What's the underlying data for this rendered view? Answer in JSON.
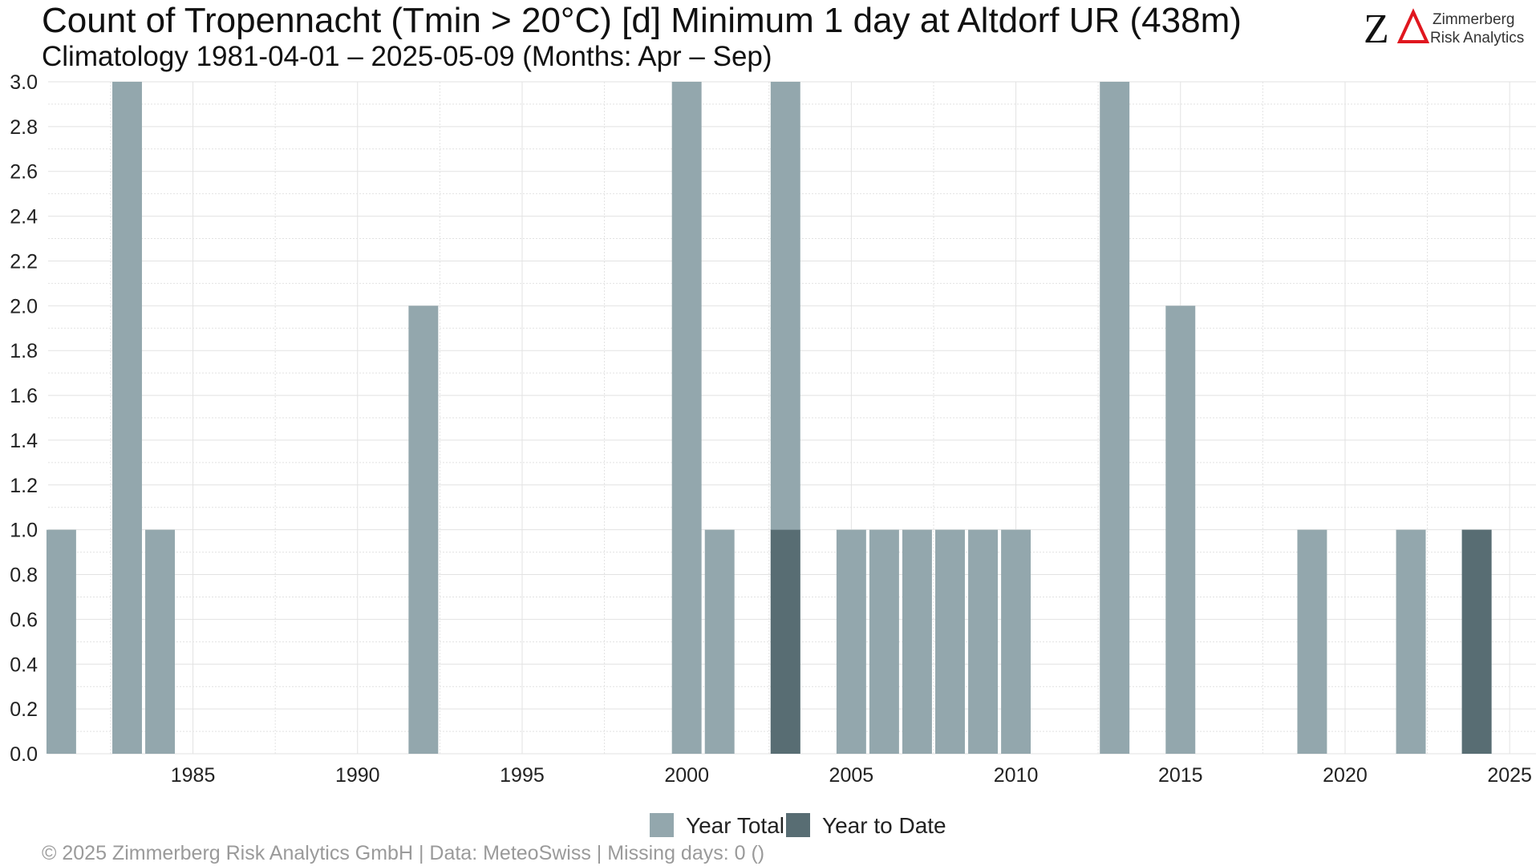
{
  "header": {
    "title": "Count of Tropennacht (Tmin > 20°C) [d] Minimum 1 day at Altdorf  UR (438m)",
    "subtitle": "Climatology 1981-04-01 – 2025-05-09 (Months: Apr – Sep)"
  },
  "logo": {
    "line1": "Zimmerberg",
    "line2": "Risk Analytics",
    "accent_color": "#e0171f"
  },
  "footer": {
    "text": "©  2025 Zimmerberg Risk Analytics GmbH | Data: MeteoSwiss | Missing days: 0 ()"
  },
  "colors": {
    "year_total": "#93a7ad",
    "year_to_date": "#586d73"
  },
  "chart_data": {
    "type": "bar",
    "title": "Count of Tropennacht (Tmin > 20°C) [d] Minimum 1 day at Altdorf  UR (438m)",
    "subtitle": "Climatology 1981-04-01 – 2025-05-09 (Months: Apr – Sep)",
    "xlabel": "",
    "ylabel": "",
    "xlim": [
      1980.6,
      2025.8
    ],
    "ylim": [
      0,
      3
    ],
    "x_ticks": [
      1985,
      1990,
      1995,
      2000,
      2005,
      2010,
      2015,
      2020,
      2025
    ],
    "y_ticks": [
      0.0,
      0.2,
      0.4,
      0.6,
      0.8,
      1.0,
      1.2,
      1.4,
      1.6,
      1.8,
      2.0,
      2.2,
      2.4,
      2.6,
      2.8,
      3.0
    ],
    "grid": true,
    "legend_position": "bottom",
    "series": [
      {
        "name": "Year Total",
        "color": "#93a7ad",
        "points": [
          {
            "x": 1981,
            "y": 1
          },
          {
            "x": 1983,
            "y": 3
          },
          {
            "x": 1984,
            "y": 1
          },
          {
            "x": 1992,
            "y": 2
          },
          {
            "x": 2000,
            "y": 3
          },
          {
            "x": 2001,
            "y": 1
          },
          {
            "x": 2003,
            "y": 3
          },
          {
            "x": 2005,
            "y": 1
          },
          {
            "x": 2006,
            "y": 1
          },
          {
            "x": 2007,
            "y": 1
          },
          {
            "x": 2008,
            "y": 1
          },
          {
            "x": 2009,
            "y": 1
          },
          {
            "x": 2010,
            "y": 1
          },
          {
            "x": 2013,
            "y": 3
          },
          {
            "x": 2015,
            "y": 2
          },
          {
            "x": 2019,
            "y": 1
          },
          {
            "x": 2022,
            "y": 1
          },
          {
            "x": 2024,
            "y": 1
          }
        ]
      },
      {
        "name": "Year to Date",
        "color": "#586d73",
        "points": [
          {
            "x": 2003,
            "y": 1
          },
          {
            "x": 2024,
            "y": 1
          }
        ]
      }
    ]
  }
}
